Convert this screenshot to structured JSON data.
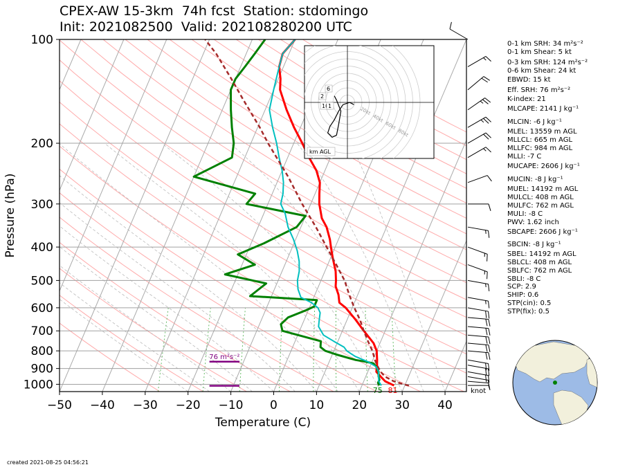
{
  "title": {
    "line1": "CPEX-AW 15-3km  74h fcst  Station: stdomingo",
    "line2": "Init: 2021082500  Valid: 202108280200 UTC"
  },
  "created": "created 2021-08-25 04:56:21",
  "colors": {
    "temperature": "#ff0000",
    "dewpoint": "#008000",
    "wetbulb": "#00bfbf",
    "parcel": "#a52a2a",
    "eff_inflow": "#800080",
    "dry_adiabat": "#ffaaaa",
    "moist_adiabat": "#bbbbbb",
    "mixing_ratio": "#66bb66",
    "isotherm": "#aaaaaa",
    "globe_ocean": "#9dbbe6",
    "globe_land": "#f2f0dc"
  },
  "indices": [
    "0-1 km SRH: 34 m²s⁻²",
    "0-1 km Shear: 5 kt",
    "0-3 km SRH: 124 m²s⁻²",
    "0-6 km Shear: 24 kt",
    "EBWD: 15 kt",
    "Eff. SRH: 76 m²s⁻²",
    "K-index: 21",
    "MLCAPE: 2141 J kg⁻¹",
    "MLCIN: -6 J kg⁻¹",
    "MLEL: 13559 m AGL",
    "MLLCL: 665 m AGL",
    "MLLFC: 984 m AGL",
    "MLLI: -7 C",
    "MUCAPE: 2606 J kg⁻¹",
    "MUCIN: -8 J kg⁻¹",
    "MUEL: 14192 m AGL",
    "MULCL: 408 m AGL",
    "MULFC: 762 m AGL",
    "MULI: -8 C",
    "PWV: 1.62 inch",
    "SBCAPE: 2606 J kg⁻¹",
    "SBCIN: -8 J kg⁻¹",
    "SBEL: 14192 m AGL",
    "SBLCL: 408 m AGL",
    "SBLFC: 762 m AGL",
    "SBLI: -8 C",
    "SCP: 2.9",
    "SHIP: 0.6",
    "STP(cin): 0.5",
    "STP(fix): 0.5"
  ],
  "chart_data": {
    "type": "line",
    "subtype": "skew-T log-P diagram",
    "xlabel": "Temperature (C)",
    "ylabel": "Pressure (hPa)",
    "xlim": [
      -50,
      45
    ],
    "ylim": [
      1050,
      100
    ],
    "y_scale": "log",
    "x_ticks": [
      -50,
      -40,
      -30,
      -20,
      -10,
      0,
      10,
      20,
      30,
      40
    ],
    "y_ticks": [
      100,
      200,
      300,
      400,
      500,
      600,
      700,
      800,
      900,
      1000
    ],
    "grid": true,
    "series": [
      {
        "key": "temperature",
        "points": [
          [
            1008,
            27.5
          ],
          [
            980,
            25
          ],
          [
            950,
            23.5
          ],
          [
            920,
            22
          ],
          [
            880,
            21.5
          ],
          [
            850,
            21
          ],
          [
            800,
            20
          ],
          [
            760,
            18.5
          ],
          [
            700,
            15
          ],
          [
            650,
            12
          ],
          [
            600,
            8.5
          ],
          [
            580,
            6.5
          ],
          [
            550,
            5.5
          ],
          [
            520,
            4
          ],
          [
            500,
            3.5
          ],
          [
            470,
            2.5
          ],
          [
            430,
            0.5
          ],
          [
            400,
            -1
          ],
          [
            380,
            -2
          ],
          [
            350,
            -4
          ],
          [
            330,
            -6
          ],
          [
            300,
            -8
          ],
          [
            280,
            -9
          ],
          [
            260,
            -10
          ],
          [
            240,
            -12
          ],
          [
            220,
            -15
          ],
          [
            200,
            -18
          ],
          [
            180,
            -21.5
          ],
          [
            160,
            -25
          ],
          [
            140,
            -28.5
          ],
          [
            130,
            -29.5
          ],
          [
            120,
            -31
          ],
          [
            110,
            -31.5
          ],
          [
            100,
            -30
          ]
        ]
      },
      {
        "key": "dewpoint",
        "points": [
          [
            1008,
            24
          ],
          [
            990,
            23.5
          ],
          [
            970,
            23.5
          ],
          [
            950,
            23
          ],
          [
            920,
            22.5
          ],
          [
            890,
            21.5
          ],
          [
            870,
            20.5
          ],
          [
            860,
            18.5
          ],
          [
            850,
            16
          ],
          [
            820,
            11
          ],
          [
            800,
            8
          ],
          [
            780,
            6.5
          ],
          [
            750,
            6
          ],
          [
            700,
            -4
          ],
          [
            670,
            -5
          ],
          [
            640,
            -4
          ],
          [
            610,
            -0.5
          ],
          [
            595,
            1
          ],
          [
            570,
            1
          ],
          [
            555,
            -15
          ],
          [
            510,
            -12.5
          ],
          [
            480,
            -23
          ],
          [
            450,
            -17
          ],
          [
            420,
            -22
          ],
          [
            390,
            -17
          ],
          [
            350,
            -11
          ],
          [
            325,
            -10
          ],
          [
            300,
            -25
          ],
          [
            280,
            -24
          ],
          [
            250,
            -40
          ],
          [
            220,
            -33
          ],
          [
            200,
            -34
          ],
          [
            180,
            -36
          ],
          [
            160,
            -38
          ],
          [
            140,
            -40
          ],
          [
            130,
            -40
          ],
          [
            120,
            -39
          ],
          [
            110,
            -38
          ],
          [
            100,
            -37
          ]
        ]
      },
      {
        "key": "wetbulb",
        "points": [
          [
            1008,
            24.5
          ],
          [
            980,
            23.5
          ],
          [
            950,
            23
          ],
          [
            920,
            22.5
          ],
          [
            890,
            21.5
          ],
          [
            860,
            19
          ],
          [
            830,
            15.5
          ],
          [
            800,
            13
          ],
          [
            780,
            12
          ],
          [
            750,
            9
          ],
          [
            720,
            6
          ],
          [
            680,
            4
          ],
          [
            650,
            3.5
          ],
          [
            620,
            3
          ],
          [
            600,
            2
          ],
          [
            580,
            0
          ],
          [
            560,
            -3
          ],
          [
            530,
            -4.5
          ],
          [
            500,
            -5.5
          ],
          [
            470,
            -6
          ],
          [
            440,
            -7
          ],
          [
            410,
            -8.5
          ],
          [
            380,
            -10.5
          ],
          [
            350,
            -13
          ],
          [
            320,
            -15
          ],
          [
            300,
            -17
          ],
          [
            280,
            -17.5
          ],
          [
            260,
            -18.5
          ],
          [
            240,
            -20
          ],
          [
            220,
            -22
          ],
          [
            200,
            -24
          ],
          [
            180,
            -26.5
          ],
          [
            160,
            -29
          ],
          [
            140,
            -30
          ],
          [
            130,
            -30.5
          ],
          [
            120,
            -31
          ],
          [
            110,
            -31.5
          ],
          [
            100,
            -30
          ]
        ]
      },
      {
        "key": "parcel",
        "points": [
          [
            1010,
            31
          ],
          [
            980,
            27
          ],
          [
            950,
            24.5
          ],
          [
            920,
            23
          ],
          [
            880,
            21.5
          ],
          [
            850,
            20.5
          ],
          [
            800,
            19
          ],
          [
            750,
            17
          ],
          [
            700,
            15
          ],
          [
            650,
            13
          ],
          [
            600,
            10.5
          ],
          [
            550,
            8
          ],
          [
            500,
            5.5
          ],
          [
            450,
            2
          ],
          [
            400,
            -2
          ],
          [
            350,
            -6.5
          ],
          [
            300,
            -12
          ],
          [
            250,
            -18
          ],
          [
            200,
            -26
          ],
          [
            180,
            -29.5
          ],
          [
            150,
            -36
          ],
          [
            130,
            -41
          ],
          [
            110,
            -47
          ],
          [
            100,
            -51
          ]
        ]
      }
    ],
    "surface_labels": {
      "temperature": "81",
      "dewpoint": "75"
    },
    "effective_inflow": {
      "label": "76 m²s⁻²",
      "top_hpa": 860,
      "base_hpa": 1010,
      "x_range": [
        -15,
        -8
      ]
    },
    "wind_units_label": "knot",
    "wind_barbs": [
      {
        "p": 1008,
        "speed": 5,
        "dir": 90
      },
      {
        "p": 980,
        "speed": 8,
        "dir": 95
      },
      {
        "p": 950,
        "speed": 12,
        "dir": 100
      },
      {
        "p": 920,
        "speed": 18,
        "dir": 100
      },
      {
        "p": 880,
        "speed": 20,
        "dir": 100
      },
      {
        "p": 850,
        "speed": 20,
        "dir": 100
      },
      {
        "p": 800,
        "speed": 20,
        "dir": 95
      },
      {
        "p": 760,
        "speed": 20,
        "dir": 95
      },
      {
        "p": 720,
        "speed": 20,
        "dir": 95
      },
      {
        "p": 680,
        "speed": 20,
        "dir": 95
      },
      {
        "p": 640,
        "speed": 20,
        "dir": 95
      },
      {
        "p": 600,
        "speed": 20,
        "dir": 100
      },
      {
        "p": 560,
        "speed": 15,
        "dir": 100
      },
      {
        "p": 500,
        "speed": 15,
        "dir": 100
      },
      {
        "p": 450,
        "speed": 15,
        "dir": 110
      },
      {
        "p": 400,
        "speed": 15,
        "dir": 110
      },
      {
        "p": 350,
        "speed": 15,
        "dir": 100
      },
      {
        "p": 300,
        "speed": 10,
        "dir": 90
      },
      {
        "p": 260,
        "speed": 10,
        "dir": 70
      },
      {
        "p": 220,
        "speed": 15,
        "dir": 60
      },
      {
        "p": 200,
        "speed": 20,
        "dir": 60
      },
      {
        "p": 180,
        "speed": 25,
        "dir": 60
      },
      {
        "p": 160,
        "speed": 25,
        "dir": 55
      },
      {
        "p": 140,
        "speed": 20,
        "dir": 50
      },
      {
        "p": 120,
        "speed": 15,
        "dir": 60
      },
      {
        "p": 100,
        "speed": 10,
        "dir": 300
      }
    ],
    "hodograph": {
      "ring_labels": [
        "20kt",
        "40kt",
        "60kt",
        "80kt"
      ],
      "height_labels": [
        "6",
        "2",
        "10",
        "1"
      ],
      "corner_label": "km AGL",
      "points_kt": [
        [
          3,
          -1
        ],
        [
          1,
          0
        ],
        [
          -2,
          -1
        ],
        [
          -4,
          -4
        ],
        [
          -6,
          -8
        ],
        [
          -8,
          -11
        ],
        [
          -9,
          -14
        ],
        [
          -7,
          -16
        ],
        [
          -5,
          -15
        ],
        [
          -4,
          -10
        ],
        [
          -3,
          -4
        ],
        [
          -5,
          1
        ],
        [
          -6,
          3
        ]
      ]
    },
    "globe": {
      "station_marker": "stdomingo"
    }
  }
}
